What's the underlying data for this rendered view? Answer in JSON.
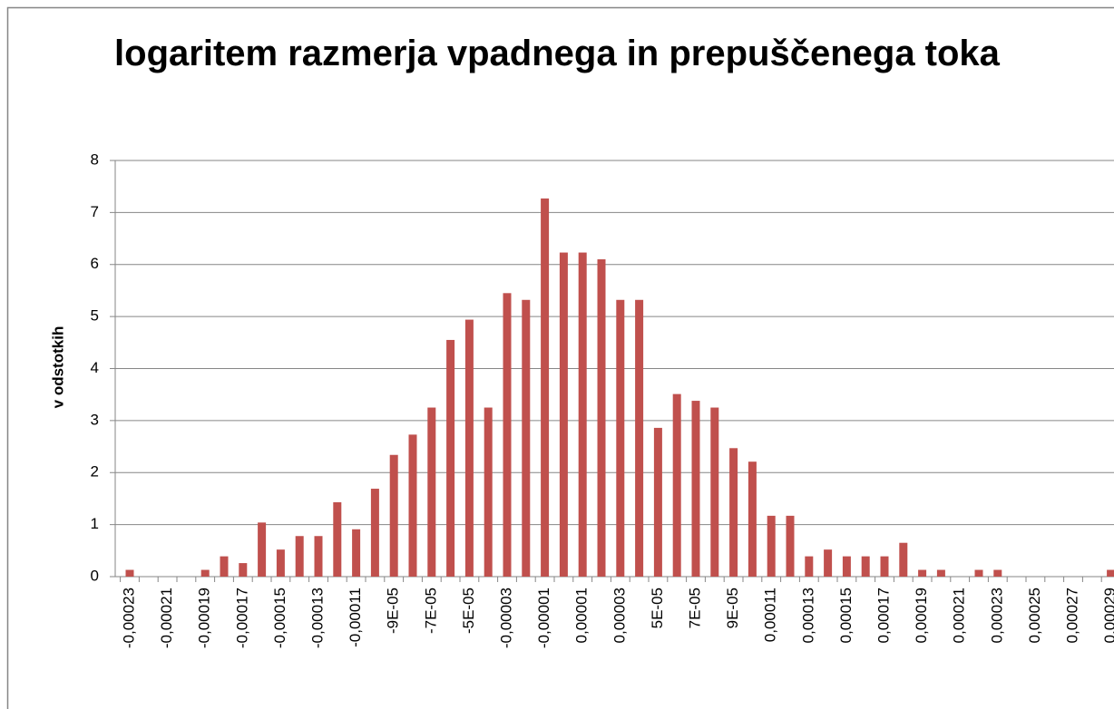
{
  "chart_data": {
    "type": "bar",
    "title": "logaritem razmerja vpadnega in prepuščenega toka",
    "y_label": "v odstotkih",
    "categories": [
      "-0,00023",
      null,
      "-0,00021",
      null,
      "-0,00019",
      null,
      "-0,00017",
      null,
      "-0,00015",
      null,
      "-0,00013",
      null,
      "-0,00011",
      null,
      "-9E-05",
      null,
      "-7E-05",
      null,
      "-5E-05",
      null,
      "-0,00003",
      null,
      "-0,00001",
      null,
      "0,00001",
      null,
      "0,00003",
      null,
      "5E-05",
      null,
      "7E-05",
      null,
      "9E-05",
      null,
      "0,00011",
      null,
      "0,00013",
      null,
      "0,00015",
      null,
      "0,00017",
      null,
      "0,00019",
      null,
      "0,00021",
      null,
      "0,00023",
      null,
      "0,00025",
      null,
      "0,00027",
      null,
      "0,00029"
    ],
    "values": [
      0.13,
      0,
      0,
      0,
      0.13,
      0.39,
      0.26,
      1.04,
      0.52,
      0.78,
      0.78,
      1.43,
      0.91,
      1.69,
      2.34,
      2.73,
      3.25,
      4.55,
      4.94,
      3.25,
      5.45,
      5.32,
      7.27,
      6.23,
      6.23,
      6.1,
      5.32,
      5.32,
      2.86,
      3.51,
      3.38,
      3.25,
      2.47,
      2.21,
      1.17,
      1.17,
      0.39,
      0.52,
      0.39,
      0.39,
      0.39,
      0.65,
      0.13,
      0.13,
      0,
      0.13,
      0.13,
      0,
      0,
      0,
      0,
      0,
      0.13
    ],
    "color": "#c0504d",
    "ylim": [
      0,
      8
    ],
    "yticks": [
      0,
      1,
      2,
      3,
      4,
      5,
      6,
      7,
      8
    ],
    "grid": true
  }
}
